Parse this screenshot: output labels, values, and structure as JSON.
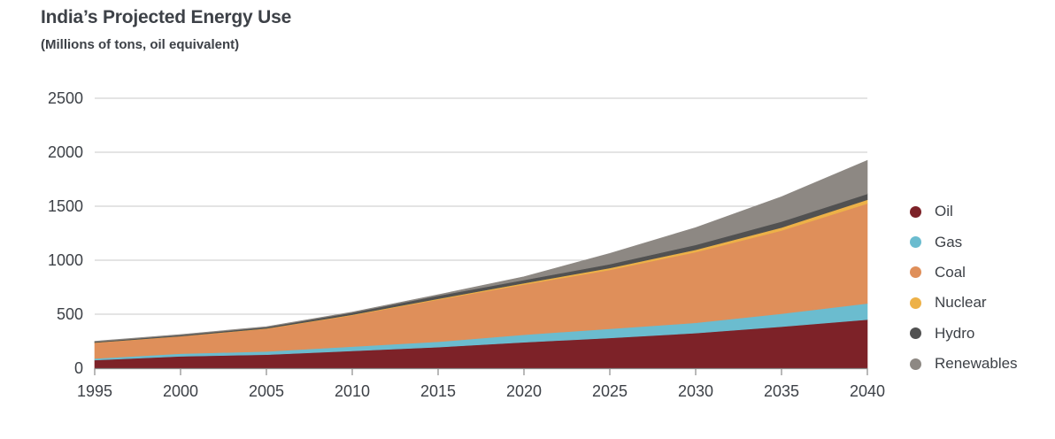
{
  "chart_data": {
    "type": "area",
    "stacked": true,
    "title": "India’s Projected Energy Use",
    "subtitle": "(Millions of tons, oil equivalent)",
    "xlabel": "",
    "ylabel": "",
    "x": [
      1995,
      2000,
      2005,
      2010,
      2015,
      2020,
      2025,
      2030,
      2035,
      2040
    ],
    "ylim": [
      0,
      2500
    ],
    "yticks": [
      0,
      500,
      1000,
      1500,
      2000,
      2500
    ],
    "ytick_labels": [
      "0",
      "500",
      "1000",
      "1500",
      "2000",
      "2500"
    ],
    "xtick_labels": [
      "1995",
      "2000",
      "2005",
      "2010",
      "2015",
      "2020",
      "2025",
      "2030",
      "2035",
      "2040"
    ],
    "grid": true,
    "legend_position": "right",
    "series": [
      {
        "name": "Oil",
        "color": "#7d2228",
        "values": [
          75,
          110,
          125,
          160,
          195,
          240,
          280,
          325,
          385,
          450
        ]
      },
      {
        "name": "Gas",
        "color": "#6bbccf",
        "values": [
          15,
          25,
          30,
          40,
          50,
          70,
          85,
          95,
          120,
          150
        ]
      },
      {
        "name": "Coal",
        "color": "#df8f5a",
        "values": [
          145,
          160,
          210,
          290,
          390,
          465,
          545,
          655,
          770,
          925
        ]
      },
      {
        "name": "Nuclear",
        "color": "#edb148",
        "values": [
          2,
          2,
          3,
          5,
          8,
          12,
          18,
          22,
          28,
          35
        ]
      },
      {
        "name": "Hydro",
        "color": "#515151",
        "values": [
          8,
          10,
          12,
          20,
          28,
          30,
          35,
          45,
          55,
          55
        ]
      },
      {
        "name": "Renewables",
        "color": "#8d8883",
        "values": [
          5,
          5,
          5,
          5,
          10,
          30,
          100,
          160,
          230,
          310
        ]
      }
    ]
  }
}
